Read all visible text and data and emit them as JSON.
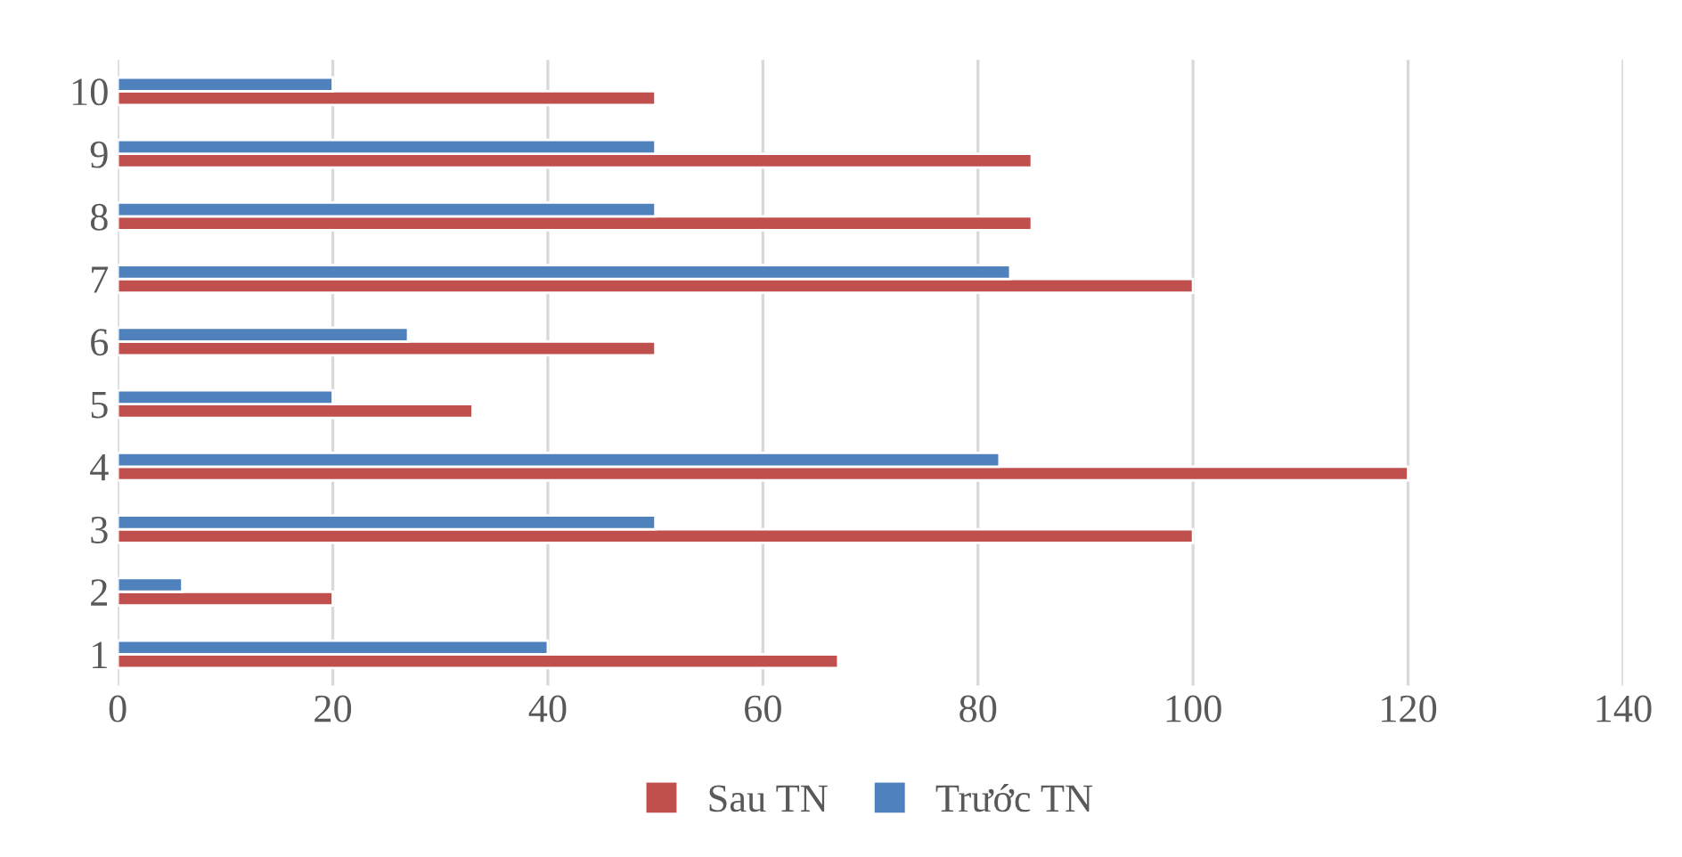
{
  "chart_data": {
    "type": "bar",
    "orientation": "horizontal",
    "categories": [
      "10",
      "9",
      "8",
      "7",
      "6",
      "5",
      "4",
      "3",
      "2",
      "1"
    ],
    "series": [
      {
        "name": "Sau TN",
        "color": "#c0504d",
        "values": [
          50,
          85,
          85,
          100,
          50,
          33,
          120,
          100,
          20,
          67
        ]
      },
      {
        "name": "Trước TN",
        "color": "#4f81bd",
        "values": [
          20,
          50,
          50,
          83,
          27,
          20,
          82,
          50,
          6,
          40
        ]
      }
    ],
    "xlim": [
      0,
      140
    ],
    "xticks": [
      0,
      20,
      40,
      60,
      80,
      100,
      120,
      140
    ],
    "grid": "x",
    "legend": "bottom"
  }
}
